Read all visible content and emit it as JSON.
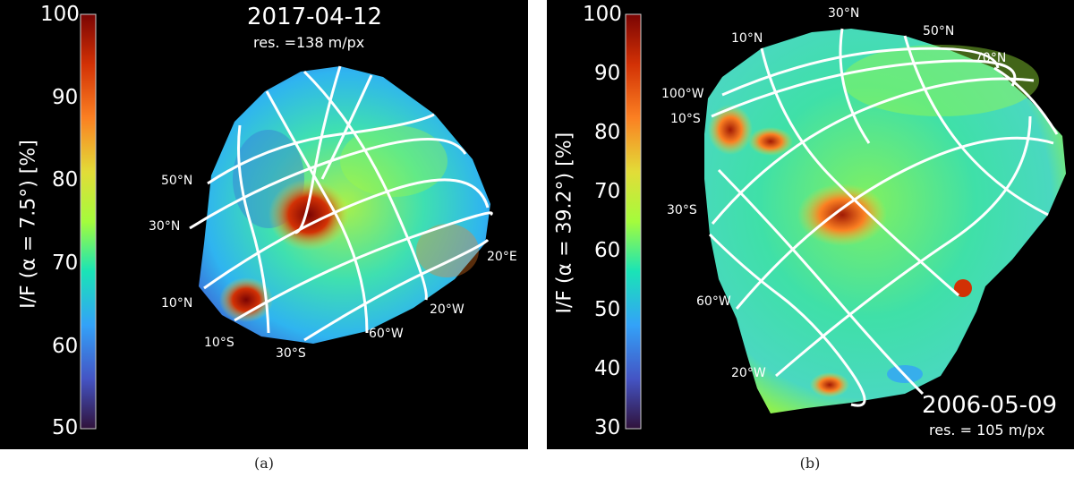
{
  "colormap": [
    "#30123b",
    "#4454c4",
    "#33a2f8",
    "#1ae4b6",
    "#a4fc3c",
    "#e2dc38",
    "#fb8022",
    "#d23105",
    "#7a0403"
  ],
  "panel_a": {
    "caption": "(a)",
    "date": "2017-04-12",
    "resolution": "res. =138 m/px",
    "colorbar_label": "I/F (α = 7.5°) [%]",
    "colorbar_ticks": [
      "100",
      "90",
      "80",
      "70",
      "60",
      "50"
    ],
    "grid_labels": [
      "50°N",
      "30°N",
      "10°N",
      "10°S",
      "30°S",
      "60°W",
      "20°W",
      "20°E"
    ]
  },
  "panel_b": {
    "caption": "(b)",
    "date": "2006-05-09",
    "resolution": "res. = 105 m/px",
    "colorbar_label": "I/F (α = 39.2°) [%]",
    "colorbar_ticks": [
      "100",
      "90",
      "80",
      "70",
      "60",
      "50",
      "40",
      "30"
    ],
    "grid_labels": [
      "30°N",
      "10°N",
      "50°N",
      "70°N",
      "100°W",
      "10°S",
      "30°S",
      "60°W",
      "20°W"
    ]
  }
}
